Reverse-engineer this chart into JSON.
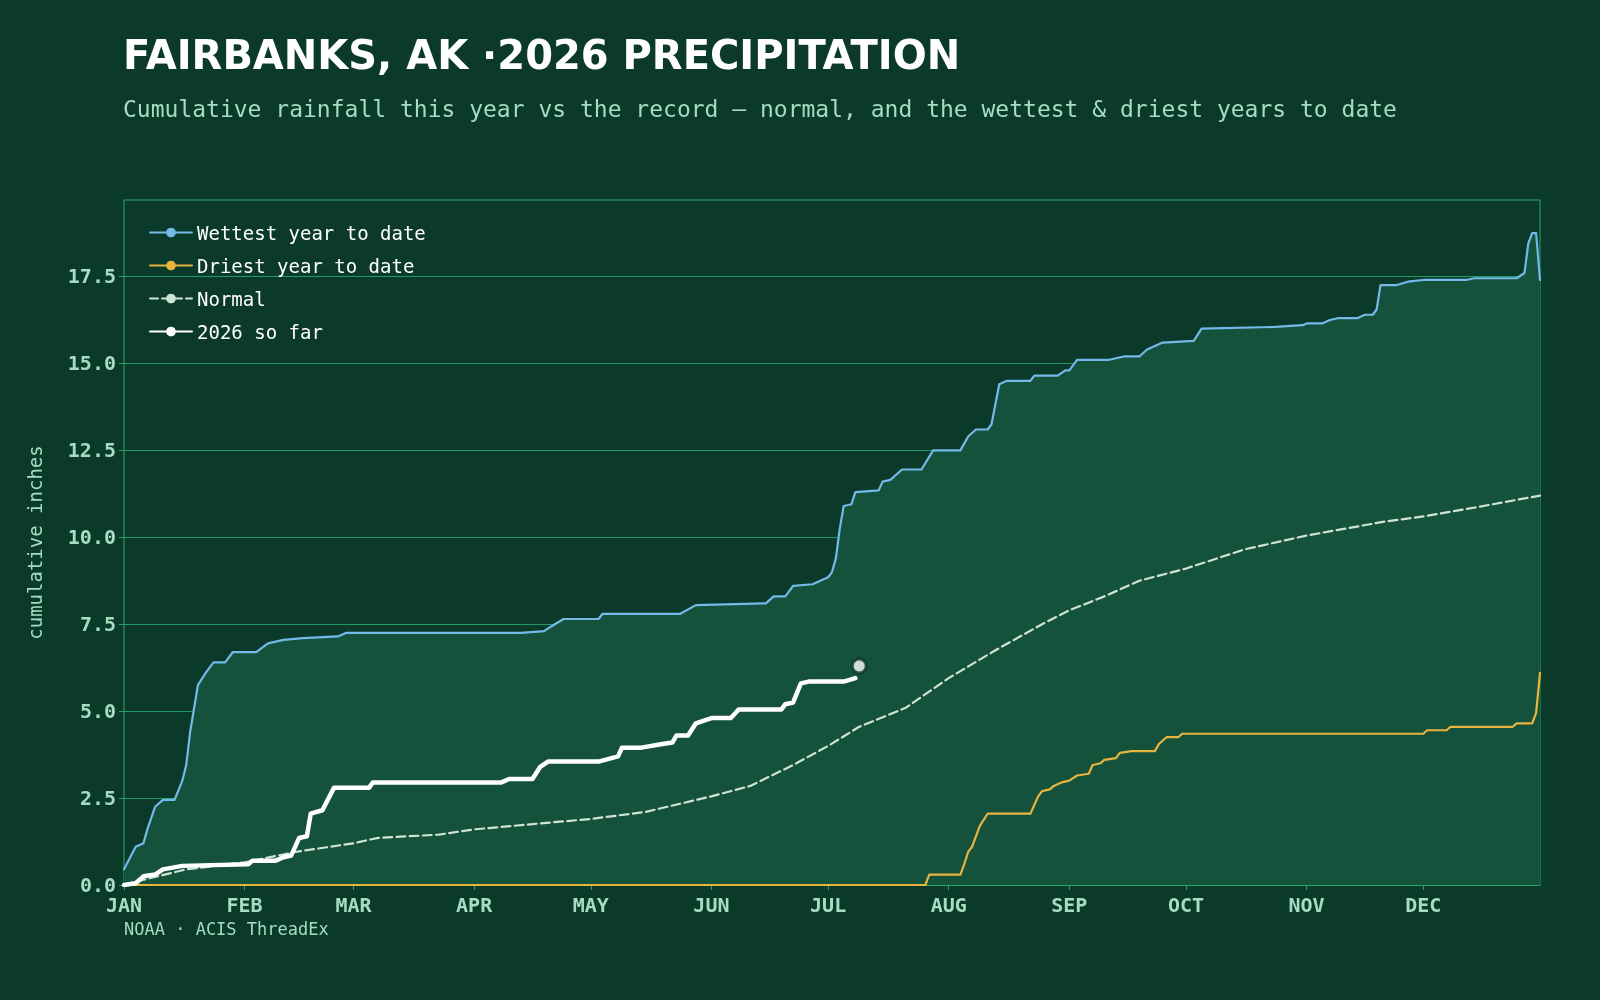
{
  "chart_data": {
    "type": "line",
    "title": "FAIRBANKS, AK ·2026 PRECIPITATION",
    "subtitle": "Cumulative rainfall this year vs the record — normal, and the wettest & driest years to date",
    "ylabel": "cumulative inches",
    "xlim": [
      "2026-01-01",
      "2026-12-31"
    ],
    "ylim": [
      0,
      19.7
    ],
    "xticks": [
      {
        "value": "2026-01-01",
        "label": "JAN"
      },
      {
        "value": "2026-02-01",
        "label": "FEB"
      },
      {
        "value": "2026-03-01",
        "label": "MAR"
      },
      {
        "value": "2026-04-01",
        "label": "APR"
      },
      {
        "value": "2026-05-01",
        "label": "MAY"
      },
      {
        "value": "2026-06-01",
        "label": "JUN"
      },
      {
        "value": "2026-07-01",
        "label": "JUL"
      },
      {
        "value": "2026-08-01",
        "label": "AUG"
      },
      {
        "value": "2026-09-01",
        "label": "SEP"
      },
      {
        "value": "2026-10-01",
        "label": "OCT"
      },
      {
        "value": "2026-11-01",
        "label": "NOV"
      },
      {
        "value": "2026-12-01",
        "label": "DEC"
      }
    ],
    "yticks": [
      {
        "value": 0,
        "label": "0.0"
      },
      2.5,
      {
        "value": 5,
        "label": "5.0"
      },
      7.5,
      {
        "value": 10,
        "label": "10.0"
      },
      12.5,
      {
        "value": 15,
        "label": "15.0"
      },
      17.5
    ],
    "grid": "y",
    "legend": "top left",
    "marker": "none",
    "annotations": [
      "NOAA · ACIS ThreadEx"
    ],
    "series": [
      {
        "name": "Wettest year to date",
        "type": "area",
        "color": "#74b9e8",
        "x": [
          "2026-01-01",
          "2026-01-04",
          "2026-01-06",
          "2026-01-07",
          "2026-01-09",
          "2026-01-11",
          "2026-01-14",
          "2026-01-16",
          "2026-01-17",
          "2026-01-18",
          "2026-01-20",
          "2026-01-22",
          "2026-01-24",
          "2026-01-27",
          "2026-01-29",
          "2026-02-04",
          "2026-02-07",
          "2026-02-11",
          "2026-02-16",
          "2026-02-25",
          "2026-02-27",
          "2026-04-13",
          "2026-04-19",
          "2026-04-21",
          "2026-04-24",
          "2026-05-03",
          "2026-05-04",
          "2026-05-24",
          "2026-05-28",
          "2026-06-15",
          "2026-06-17",
          "2026-06-20",
          "2026-06-22",
          "2026-06-27",
          "2026-06-29",
          "2026-07-01",
          "2026-07-02",
          "2026-07-03",
          "2026-07-04",
          "2026-07-05",
          "2026-07-07",
          "2026-07-08",
          "2026-07-14",
          "2026-07-15",
          "2026-07-17",
          "2026-07-20",
          "2026-07-25",
          "2026-07-28",
          "2026-08-04",
          "2026-08-06",
          "2026-08-08",
          "2026-08-11",
          "2026-08-12",
          "2026-08-14",
          "2026-08-16",
          "2026-08-22",
          "2026-08-23",
          "2026-08-29",
          "2026-08-31",
          "2026-09-01",
          "2026-09-03",
          "2026-09-11",
          "2026-09-15",
          "2026-09-19",
          "2026-09-21",
          "2026-09-23",
          "2026-09-25",
          "2026-10-03",
          "2026-10-05",
          "2026-10-24",
          "2026-10-31",
          "2026-11-01",
          "2026-11-05",
          "2026-11-07",
          "2026-11-09",
          "2026-11-14",
          "2026-11-16",
          "2026-11-18",
          "2026-11-19",
          "2026-11-20",
          "2026-11-24",
          "2026-11-27",
          "2026-12-01",
          "2026-12-12",
          "2026-12-14",
          "2026-12-25",
          "2026-12-27",
          "2026-12-28",
          "2026-12-29",
          "2026-12-30",
          "2026-12-31"
        ],
        "values": [
          0.45,
          1.1,
          1.2,
          1.6,
          2.25,
          2.45,
          2.45,
          3.0,
          3.45,
          4.4,
          5.75,
          6.1,
          6.4,
          6.4,
          6.7,
          6.7,
          6.95,
          7.05,
          7.1,
          7.15,
          7.25,
          7.25,
          7.3,
          7.45,
          7.65,
          7.65,
          7.8,
          7.8,
          8.05,
          8.1,
          8.3,
          8.3,
          8.6,
          8.65,
          8.75,
          8.85,
          9.0,
          9.4,
          10.25,
          10.9,
          10.95,
          11.3,
          11.35,
          11.6,
          11.65,
          11.95,
          11.95,
          12.5,
          12.5,
          12.9,
          13.1,
          13.1,
          13.25,
          14.4,
          14.5,
          14.5,
          14.65,
          14.65,
          14.8,
          14.8,
          15.1,
          15.1,
          15.2,
          15.2,
          15.4,
          15.5,
          15.6,
          15.65,
          16.0,
          16.05,
          16.1,
          16.15,
          16.15,
          16.25,
          16.3,
          16.3,
          16.4,
          16.4,
          16.55,
          17.25,
          17.25,
          17.35,
          17.4,
          17.4,
          17.45,
          17.45,
          17.6,
          18.45,
          18.75,
          18.75,
          17.4
        ]
      },
      {
        "name": "Driest year to date",
        "color": "#e8b440",
        "x": [
          "2026-01-01",
          "2026-07-26",
          "2026-07-27",
          "2026-08-04",
          "2026-08-05",
          "2026-08-06",
          "2026-08-07",
          "2026-08-08",
          "2026-08-09",
          "2026-08-11",
          "2026-08-22",
          "2026-08-24",
          "2026-08-25",
          "2026-08-27",
          "2026-08-28",
          "2026-08-30",
          "2026-09-01",
          "2026-09-03",
          "2026-09-06",
          "2026-09-07",
          "2026-09-09",
          "2026-09-10",
          "2026-09-13",
          "2026-09-14",
          "2026-09-17",
          "2026-09-23",
          "2026-09-24",
          "2026-09-26",
          "2026-09-29",
          "2026-09-30",
          "2026-12-01",
          "2026-12-02",
          "2026-12-07",
          "2026-12-08",
          "2026-12-24",
          "2026-12-25",
          "2026-12-29",
          "2026-12-30",
          "2026-12-31"
        ],
        "values": [
          0,
          0,
          0.3,
          0.3,
          0.6,
          0.95,
          1.1,
          1.4,
          1.7,
          2.05,
          2.05,
          2.55,
          2.7,
          2.75,
          2.85,
          2.95,
          3.0,
          3.15,
          3.2,
          3.45,
          3.5,
          3.6,
          3.65,
          3.8,
          3.85,
          3.85,
          4.05,
          4.25,
          4.25,
          4.35,
          4.35,
          4.45,
          4.45,
          4.55,
          4.55,
          4.65,
          4.65,
          4.95,
          6.1
        ]
      },
      {
        "name": "Normal",
        "line_style": "dashed",
        "color": "#cfe3d6",
        "x": [
          "2026-01-01",
          "2026-01-06",
          "2026-01-17",
          "2026-02-01",
          "2026-02-14",
          "2026-03-01",
          "2026-03-07",
          "2026-03-23",
          "2026-04-01",
          "2026-04-16",
          "2026-05-01",
          "2026-05-15",
          "2026-06-01",
          "2026-06-11",
          "2026-06-22",
          "2026-07-01",
          "2026-07-09",
          "2026-07-21",
          "2026-08-01",
          "2026-08-13",
          "2026-08-25",
          "2026-09-01",
          "2026-09-10",
          "2026-09-19",
          "2026-10-01",
          "2026-10-16",
          "2026-11-01",
          "2026-11-21",
          "2026-12-01",
          "2026-12-14",
          "2026-12-31"
        ],
        "values": [
          0,
          0.15,
          0.45,
          0.65,
          0.95,
          1.2,
          1.35,
          1.45,
          1.6,
          1.75,
          1.9,
          2.1,
          2.55,
          2.85,
          3.45,
          4.0,
          4.55,
          5.1,
          5.95,
          6.75,
          7.5,
          7.9,
          8.3,
          8.75,
          9.1,
          9.65,
          10.05,
          10.45,
          10.6,
          10.85,
          11.2
        ]
      },
      {
        "name": "2026 so far",
        "color": "#ffffff",
        "x": [
          "2026-01-01",
          "2026-01-04",
          "2026-01-06",
          "2026-01-09",
          "2026-01-11",
          "2026-01-16",
          "2026-02-02",
          "2026-02-03",
          "2026-02-09",
          "2026-02-11",
          "2026-02-13",
          "2026-02-15",
          "2026-02-17",
          "2026-02-18",
          "2026-02-21",
          "2026-02-24",
          "2026-03-05",
          "2026-03-06",
          "2026-04-08",
          "2026-04-10",
          "2026-04-16",
          "2026-04-18",
          "2026-04-20",
          "2026-05-03",
          "2026-05-08",
          "2026-05-09",
          "2026-05-14",
          "2026-05-19",
          "2026-05-22",
          "2026-05-23",
          "2026-05-26",
          "2026-05-28",
          "2026-06-01",
          "2026-06-06",
          "2026-06-08",
          "2026-06-19",
          "2026-06-20",
          "2026-06-22",
          "2026-06-24",
          "2026-06-26",
          "2026-07-05",
          "2026-07-08"
        ],
        "values": [
          0,
          0.05,
          0.25,
          0.3,
          0.45,
          0.55,
          0.6,
          0.7,
          0.7,
          0.8,
          0.85,
          1.35,
          1.4,
          2.05,
          2.15,
          2.8,
          2.8,
          2.95,
          2.95,
          3.05,
          3.05,
          3.4,
          3.55,
          3.55,
          3.7,
          3.95,
          3.95,
          4.05,
          4.1,
          4.3,
          4.3,
          4.65,
          4.8,
          4.8,
          5.05,
          5.05,
          5.2,
          5.25,
          5.8,
          5.85,
          5.85,
          5.95
        ]
      },
      {
        "type": "scatter",
        "marker": "circle",
        "color": "#ffffff",
        "x": [
          "2026-07-09"
        ],
        "values": [
          6.3
        ]
      }
    ]
  }
}
